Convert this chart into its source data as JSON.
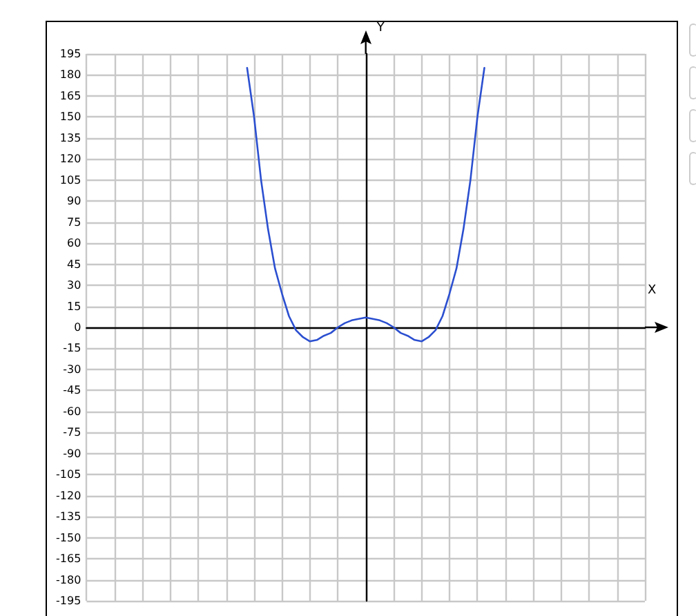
{
  "chart_data": {
    "type": "line",
    "xlabel": "X",
    "ylabel": "Y",
    "categories": [
      null,
      null,
      null,
      null,
      null,
      null,
      null,
      null,
      null,
      null,
      null,
      null,
      null,
      null,
      null,
      null,
      null,
      null,
      null,
      null,
      null,
      null,
      null,
      null,
      null,
      null,
      null,
      null,
      null,
      null,
      null,
      null,
      null,
      null,
      null,
      null,
      null,
      null,
      null,
      null,
      null,
      null,
      null,
      null,
      null,
      null,
      null,
      null,
      null,
      null,
      null,
      null,
      null,
      null,
      null,
      null,
      null,
      null,
      null,
      null,
      null,
      null,
      null,
      null,
      null,
      null,
      null,
      null,
      null,
      null,
      null,
      null,
      null,
      null,
      null,
      null,
      null,
      null,
      null,
      null,
      null
    ],
    "values": [
      null,
      null,
      null,
      null,
      null,
      null,
      null,
      null,
      null,
      null,
      null,
      null,
      null,
      null,
      null,
      null,
      null,
      null,
      null,
      null,
      null,
      null,
      null,
      185,
      150,
      105,
      70,
      42,
      24,
      8,
      -2,
      -7,
      -10,
      -9,
      -6,
      -4,
      0,
      3,
      5,
      6,
      7,
      6,
      5,
      3,
      0,
      -4,
      -6,
      -9,
      -10,
      -7,
      -2,
      8,
      24,
      42,
      70,
      105,
      150,
      185,
      null,
      null,
      null,
      null,
      null,
      null,
      null,
      null,
      null,
      null,
      null,
      null,
      null,
      null,
      null,
      null,
      null,
      null,
      null,
      null,
      null,
      null,
      null
    ],
    "color": "#2b4fd0",
    "line_style": "solid",
    "ylim": [
      -195,
      195
    ],
    "yticks": [
      -195,
      -180,
      -165,
      -150,
      -135,
      -120,
      -105,
      -90,
      -75,
      -60,
      -45,
      -30,
      -15,
      0,
      15,
      30,
      45,
      60,
      75,
      90,
      105,
      120,
      135,
      150,
      165,
      180,
      195
    ],
    "grid": true,
    "tick_labels": "y"
  }
}
